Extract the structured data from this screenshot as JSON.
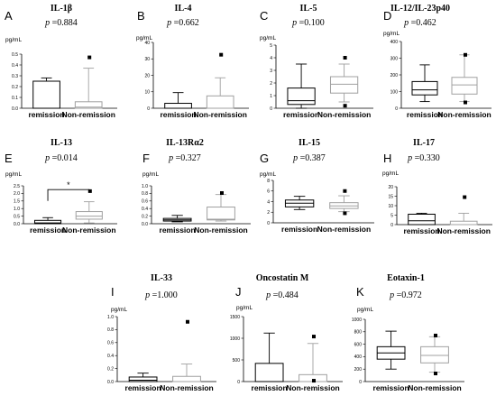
{
  "colors": {
    "remission": "#000000",
    "non_remission": "#a0a0a0",
    "axis": "#000000"
  },
  "chart_data": [
    {
      "type": "box",
      "letter": "A",
      "title": "IL-1β",
      "p_label": "p",
      "p_value": "=0.884",
      "unit": "pg/mL",
      "ylim": [
        0,
        0.5
      ],
      "yticks": [
        "0.0",
        "0.1",
        "0.2",
        "0.3",
        "0.4",
        "0.5"
      ],
      "categories": [
        "remission",
        "Non-remission"
      ],
      "boxes": [
        {
          "min": 0,
          "q1": 0,
          "median": 0,
          "q3": 0.25,
          "max": 0.28,
          "outliers": []
        },
        {
          "min": 0,
          "q1": 0,
          "median": 0.01,
          "q3": 0.06,
          "max": 0.37,
          "outliers": [
            0.47
          ]
        }
      ],
      "significance": ""
    },
    {
      "type": "box",
      "letter": "B",
      "title": "IL-4",
      "p_label": "p",
      "p_value": "=0.662",
      "unit": "pg/mL",
      "ylim": [
        0,
        40
      ],
      "yticks": [
        "0",
        "10",
        "20",
        "30",
        "40"
      ],
      "categories": [
        "remission",
        "Non-remission"
      ],
      "boxes": [
        {
          "min": 0,
          "q1": 0,
          "median": 0,
          "q3": 3,
          "max": 9.5,
          "outliers": []
        },
        {
          "min": 0,
          "q1": 0,
          "median": 0,
          "q3": 7.5,
          "max": 18.5,
          "outliers": [
            32.5
          ]
        }
      ],
      "significance": ""
    },
    {
      "type": "box",
      "letter": "C",
      "title": "IL-5",
      "p_label": "p",
      "p_value": "=0.100",
      "unit": "pg/mL",
      "ylim": [
        0,
        5
      ],
      "yticks": [
        "0",
        "1",
        "2",
        "3",
        "4",
        "5"
      ],
      "categories": [
        "remission",
        "Non-remission"
      ],
      "boxes": [
        {
          "min": 0,
          "q1": 0.3,
          "median": 0.6,
          "q3": 1.6,
          "max": 3.5,
          "outliers": []
        },
        {
          "min": 0.5,
          "q1": 1.2,
          "median": 1.9,
          "q3": 2.5,
          "max": 3.5,
          "outliers": [
            4.0,
            0.2
          ]
        }
      ],
      "significance": ""
    },
    {
      "type": "box",
      "letter": "D",
      "title": "IL-12/IL-23p40",
      "p_label": "p",
      "p_value": "=0.462",
      "unit": "pg/mL",
      "ylim": [
        0,
        400
      ],
      "yticks": [
        "0",
        "100",
        "200",
        "300",
        "400"
      ],
      "categories": [
        "remission",
        "Non-remission"
      ],
      "boxes": [
        {
          "min": 40,
          "q1": 80,
          "median": 110,
          "q3": 160,
          "max": 260,
          "outliers": []
        },
        {
          "min": 40,
          "q1": 85,
          "median": 140,
          "q3": 185,
          "max": 320,
          "outliers": [
            320,
            35
          ]
        }
      ],
      "significance": ""
    },
    {
      "type": "box",
      "letter": "E",
      "title": "IL-13",
      "p_label": "p",
      "p_value": "=0.014",
      "unit": "pg/mL",
      "ylim": [
        0,
        2.5
      ],
      "yticks": [
        "0.0",
        "0.5",
        "1.0",
        "1.5",
        "2.0",
        "2.5"
      ],
      "categories": [
        "remission",
        "Non-remission"
      ],
      "boxes": [
        {
          "min": 0,
          "q1": 0,
          "median": 0.05,
          "q3": 0.22,
          "max": 0.4,
          "outliers": []
        },
        {
          "min": 0.05,
          "q1": 0.3,
          "median": 0.5,
          "q3": 0.8,
          "max": 1.45,
          "outliers": [
            2.15
          ]
        }
      ],
      "significance": "*"
    },
    {
      "type": "box",
      "letter": "F",
      "title": "IL-13Rα2",
      "p_label": "p",
      "p_value": "=0.327",
      "unit": "pg/mL",
      "ylim": [
        0,
        1.0
      ],
      "yticks": [
        "0.0",
        "0.2",
        "0.4",
        "0.6",
        "0.8",
        "1.0"
      ],
      "categories": [
        "remission",
        "Non-remission"
      ],
      "boxes": [
        {
          "min": 0.05,
          "q1": 0.07,
          "median": 0.1,
          "q3": 0.14,
          "max": 0.22,
          "outliers": []
        },
        {
          "min": 0.07,
          "q1": 0.1,
          "median": 0.12,
          "q3": 0.44,
          "max": 0.77,
          "outliers": [
            0.81
          ]
        }
      ],
      "significance": ""
    },
    {
      "type": "box",
      "letter": "G",
      "title": "IL-15",
      "p_label": "p",
      "p_value": "=0.387",
      "unit": "pg/mL",
      "ylim": [
        0,
        8
      ],
      "yticks": [
        "0",
        "2",
        "4",
        "6",
        "8"
      ],
      "categories": [
        "remission",
        "Non-remission"
      ],
      "boxes": [
        {
          "min": 2.5,
          "q1": 3.0,
          "median": 3.7,
          "q3": 4.3,
          "max": 5.0,
          "outliers": []
        },
        {
          "min": 2.1,
          "q1": 2.7,
          "median": 3.2,
          "q3": 3.8,
          "max": 5.1,
          "outliers": [
            6.0,
            1.8
          ]
        }
      ],
      "significance": ""
    },
    {
      "type": "box",
      "letter": "H",
      "title": "IL-17",
      "p_label": "p",
      "p_value": "=0.330",
      "unit": "pg/mL",
      "ylim": [
        0,
        20
      ],
      "yticks": [
        "0",
        "5",
        "10",
        "15",
        "20"
      ],
      "categories": [
        "remission",
        "Non-remission"
      ],
      "boxes": [
        {
          "min": 0,
          "q1": 0,
          "median": 2,
          "q3": 5.5,
          "max": 6,
          "outliers": []
        },
        {
          "min": 0,
          "q1": 0,
          "median": 0,
          "q3": 1.8,
          "max": 6,
          "outliers": [
            14.5
          ]
        }
      ],
      "significance": ""
    },
    {
      "type": "box",
      "letter": "I",
      "title": "IL-33",
      "p_label": "p",
      "p_value": "=1.000",
      "unit": "pg/mL",
      "ylim": [
        0,
        1.0
      ],
      "yticks": [
        "0.0",
        "0.2",
        "0.4",
        "0.6",
        "0.8",
        "1.0"
      ],
      "categories": [
        "remission",
        "Non-remission"
      ],
      "boxes": [
        {
          "min": 0,
          "q1": 0,
          "median": 0.02,
          "q3": 0.07,
          "max": 0.13,
          "outliers": []
        },
        {
          "min": 0,
          "q1": 0,
          "median": 0,
          "q3": 0.08,
          "max": 0.27,
          "outliers": [
            0.92
          ]
        }
      ],
      "significance": ""
    },
    {
      "type": "box",
      "letter": "J",
      "title": "Oncostatin M",
      "p_label": "p",
      "p_value": "=0.484",
      "unit": "pg/mL",
      "ylim": [
        0,
        1500
      ],
      "yticks": [
        "0",
        "500",
        "1000",
        "1500"
      ],
      "categories": [
        "remission",
        "Non-remission"
      ],
      "boxes": [
        {
          "min": 0,
          "q1": 0,
          "median": 0,
          "q3": 420,
          "max": 1120,
          "outliers": []
        },
        {
          "min": 0,
          "q1": 0,
          "median": 0,
          "q3": 160,
          "max": 880,
          "outliers": [
            1040,
            20
          ]
        }
      ],
      "significance": ""
    },
    {
      "type": "box",
      "letter": "K",
      "title": "Eotaxin-1",
      "p_label": "p",
      "p_value": "=0.972",
      "unit": "pg/mL",
      "ylim": [
        0,
        1000
      ],
      "yticks": [
        "0",
        "200",
        "400",
        "600",
        "800",
        "1000"
      ],
      "categories": [
        "remission",
        "Non-remission"
      ],
      "boxes": [
        {
          "min": 200,
          "q1": 360,
          "median": 460,
          "q3": 560,
          "max": 810,
          "outliers": []
        },
        {
          "min": 150,
          "q1": 300,
          "median": 420,
          "q3": 560,
          "max": 720,
          "outliers": [
            740,
            130
          ]
        }
      ],
      "significance": ""
    }
  ]
}
